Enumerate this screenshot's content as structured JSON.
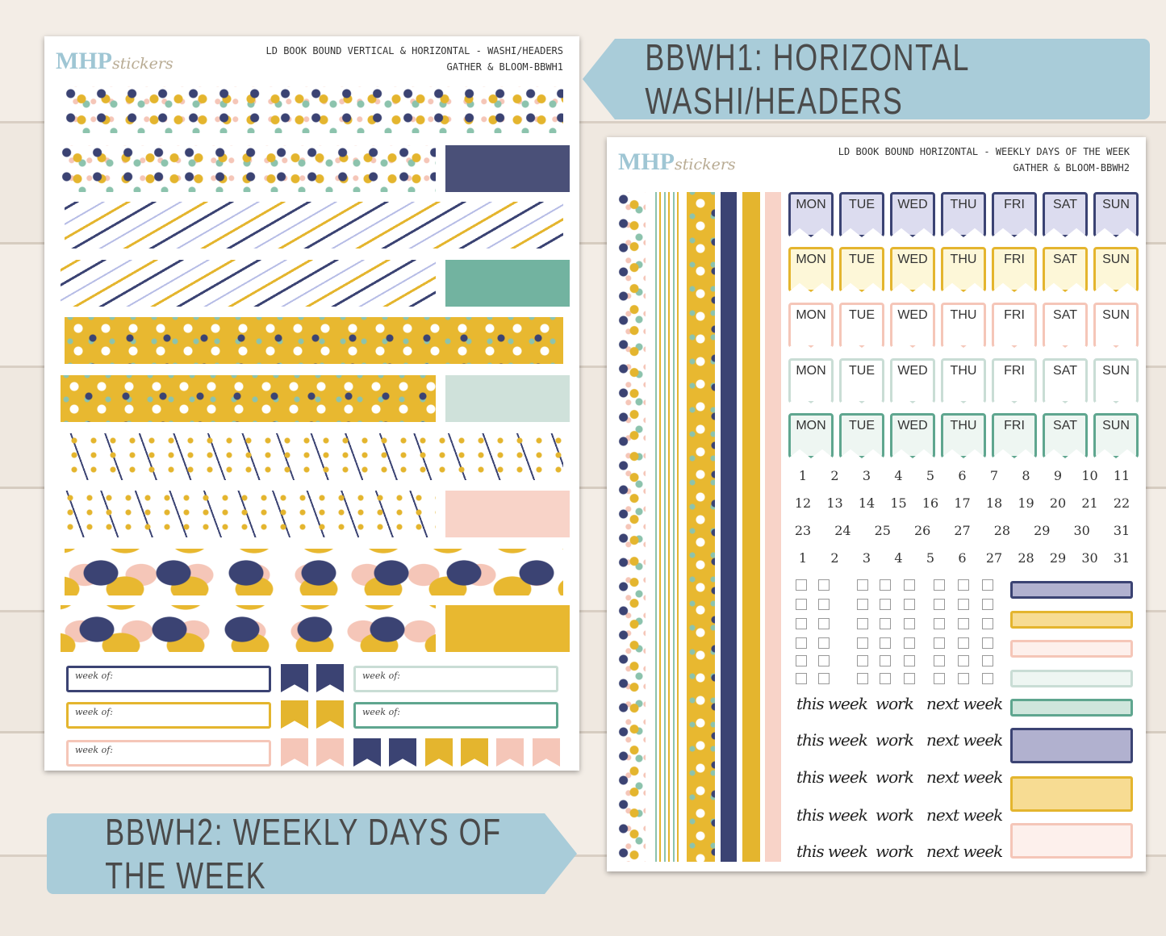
{
  "banners": [
    "BBWH1: HORIZONTAL WASHI/HEADERS",
    "BBWH2: WEEKLY DAYS OF THE WEEK"
  ],
  "sheets": [
    {
      "logo": "MHP",
      "logo_sub": "stickers",
      "title": "LD BOOK BOUND VERTICAL & HORIZONTAL - WASHI/HEADERS",
      "subtitle": "GATHER & BLOOM-BBWH1",
      "week_label": "week of:"
    },
    {
      "logo": "MHP",
      "logo_sub": "stickers",
      "title": "LD BOOK BOUND HORIZONTAL - WEEKLY DAYS OF THE WEEK",
      "subtitle": "GATHER & BLOOM-BBWH2",
      "days": [
        "MON",
        "TUE",
        "WED",
        "THU",
        "FRI",
        "SAT",
        "SUN"
      ],
      "date_rows": [
        [
          1,
          2,
          3,
          4,
          5,
          6,
          7,
          8,
          9,
          10,
          11
        ],
        [
          12,
          13,
          14,
          15,
          16,
          17,
          18,
          19,
          20,
          21,
          22
        ],
        [
          23,
          24,
          25,
          26,
          27,
          28,
          29,
          30,
          31
        ],
        [
          1,
          2,
          3,
          4,
          5,
          6,
          27,
          28,
          29,
          30,
          31
        ]
      ],
      "script_labels": [
        "this week",
        "work",
        "next week"
      ]
    }
  ]
}
